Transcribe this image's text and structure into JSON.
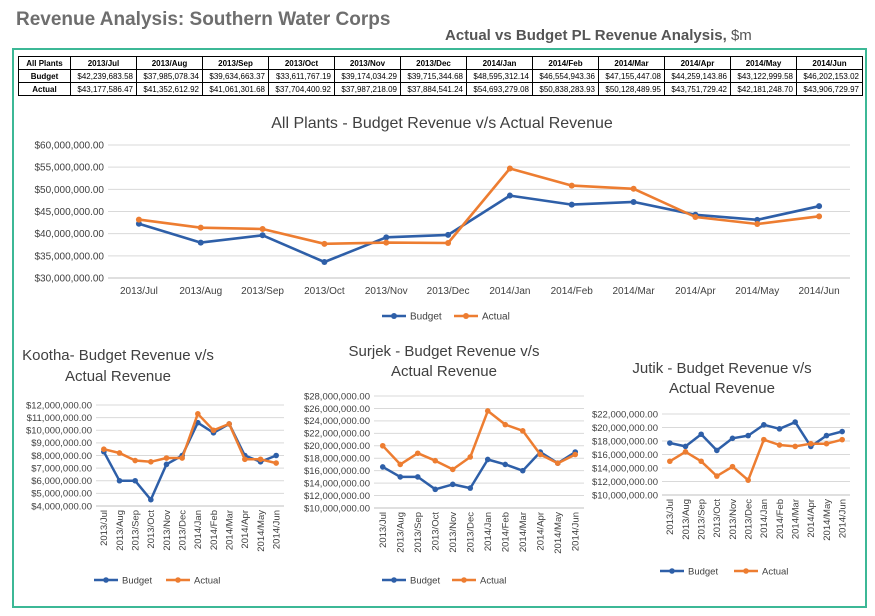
{
  "page": {
    "title": "Revenue Analysis: Southern Water Corps",
    "subtitle": "Actual vs Budget PL Revenue Analysis,",
    "subtitle_unit": "$m"
  },
  "summary_table": {
    "corner": "All Plants",
    "months": [
      "2013/Jul",
      "2013/Aug",
      "2013/Sep",
      "2013/Oct",
      "2013/Nov",
      "2013/Dec",
      "2014/Jan",
      "2014/Feb",
      "2014/Mar",
      "2014/Apr",
      "2014/May",
      "2014/Jun"
    ],
    "rows": [
      {
        "label": "Budget",
        "values": [
          "$42,239,683.58",
          "$37,985,078.34",
          "$39,634,663.37",
          "$33,611,767.19",
          "$39,174,034.29",
          "$39,715,344.68",
          "$48,595,312.14",
          "$46,554,943.36",
          "$47,155,447.08",
          "$44,259,143.86",
          "$43,122,999.58",
          "$46,202,153.02"
        ]
      },
      {
        "label": "Actual",
        "values": [
          "$43,177,586.47",
          "$41,352,612.92",
          "$41,061,301.68",
          "$37,704,400.92",
          "$37,987,218.09",
          "$37,884,541.24",
          "$54,693,279.08",
          "$50,838,283.93",
          "$50,128,489.95",
          "$43,751,729.42",
          "$42,181,248.70",
          "$43,906,729.97"
        ]
      }
    ]
  },
  "colors": {
    "budget": "#2e5fa8",
    "actual": "#ed7d31",
    "frame": "#3cb896",
    "grid": "#d9d9d9"
  },
  "chart_data": [
    {
      "type": "line",
      "title": "All Plants - Budget Revenue v/s Actual Revenue",
      "categories": [
        "2013/Jul",
        "2013/Aug",
        "2013/Sep",
        "2013/Oct",
        "2013/Nov",
        "2013/Dec",
        "2014/Jan",
        "2014/Feb",
        "2014/Mar",
        "2014/Apr",
        "2014/May",
        "2014/Jun"
      ],
      "series": [
        {
          "name": "Budget",
          "values": [
            42239683.58,
            37985078.34,
            39634663.37,
            33611767.19,
            39174034.29,
            39715344.68,
            48595312.14,
            46554943.36,
            47155447.08,
            44259143.86,
            43122999.58,
            46202153.02
          ]
        },
        {
          "name": "Actual",
          "values": [
            43177586.47,
            41352612.92,
            41061301.68,
            37704400.92,
            37987218.09,
            37884541.24,
            54693279.08,
            50838283.93,
            50128489.95,
            43751729.42,
            42181248.7,
            43906729.97
          ]
        }
      ],
      "ylim": [
        30000000,
        60000000
      ],
      "yticks": [
        30000000,
        35000000,
        40000000,
        45000000,
        50000000,
        55000000,
        60000000
      ],
      "grid": true,
      "legend": "bottom",
      "xlabel_rotated": false
    },
    {
      "type": "line",
      "title_lines": [
        "Kootha- Budget Revenue v/s",
        "Actual Revenue"
      ],
      "categories": [
        "2013/Jul",
        "2013/Aug",
        "2013/Sep",
        "2013/Oct",
        "2013/Nov",
        "2013/Dec",
        "2014/Jan",
        "2014/Feb",
        "2014/Mar",
        "2014/Apr",
        "2014/May",
        "2014/Jun"
      ],
      "series": [
        {
          "name": "Budget",
          "values": [
            8300000,
            6000000,
            6000000,
            4500000,
            7300000,
            8000000,
            10600000,
            9800000,
            10500000,
            8000000,
            7500000,
            8000000
          ]
        },
        {
          "name": "Actual",
          "values": [
            8500000,
            8200000,
            7600000,
            7500000,
            7800000,
            7800000,
            11300000,
            10000000,
            10500000,
            7700000,
            7700000,
            7400000
          ]
        }
      ],
      "ylim": [
        4000000,
        12000000
      ],
      "yticks": [
        4000000,
        5000000,
        6000000,
        7000000,
        8000000,
        9000000,
        10000000,
        11000000,
        12000000
      ],
      "grid": true,
      "legend": "bottom",
      "xlabel_rotated": true
    },
    {
      "type": "line",
      "title_lines": [
        "Surjek - Budget Revenue v/s",
        "Actual Revenue"
      ],
      "categories": [
        "2013/Jul",
        "2013/Aug",
        "2013/Sep",
        "2013/Oct",
        "2013/Nov",
        "2013/Dec",
        "2014/Jan",
        "2014/Feb",
        "2014/Mar",
        "2014/Apr",
        "2014/May",
        "2014/Jun"
      ],
      "series": [
        {
          "name": "Budget",
          "values": [
            16600000,
            15000000,
            15000000,
            13000000,
            13800000,
            13200000,
            17800000,
            17000000,
            16000000,
            19000000,
            17200000,
            19000000
          ]
        },
        {
          "name": "Actual",
          "values": [
            20000000,
            17000000,
            18800000,
            17600000,
            16200000,
            18200000,
            25600000,
            23400000,
            22400000,
            18600000,
            17200000,
            18600000
          ]
        }
      ],
      "ylim": [
        10000000,
        28000000
      ],
      "yticks": [
        10000000,
        12000000,
        14000000,
        16000000,
        18000000,
        20000000,
        22000000,
        24000000,
        26000000,
        28000000
      ],
      "grid": true,
      "legend": "bottom",
      "xlabel_rotated": true
    },
    {
      "type": "line",
      "title_lines": [
        "Jutik - Budget Revenue v/s",
        "Actual Revenue"
      ],
      "categories": [
        "2013/Jul",
        "2013/Aug",
        "2013/Sep",
        "2013/Oct",
        "2013/Nov",
        "2013/Dec",
        "2014/Jan",
        "2014/Feb",
        "2014/Mar",
        "2014/Apr",
        "2014/May",
        "2014/Jun"
      ],
      "series": [
        {
          "name": "Budget",
          "values": [
            17700000,
            17200000,
            19000000,
            16600000,
            18400000,
            18800000,
            20400000,
            19800000,
            20800000,
            17200000,
            18800000,
            19400000
          ]
        },
        {
          "name": "Actual",
          "values": [
            15000000,
            16400000,
            15000000,
            12800000,
            14200000,
            12200000,
            18200000,
            17400000,
            17200000,
            17600000,
            17600000,
            18200000
          ]
        }
      ],
      "ylim": [
        10000000,
        22000000
      ],
      "yticks": [
        10000000,
        12000000,
        14000000,
        16000000,
        18000000,
        20000000,
        22000000
      ],
      "grid": true,
      "legend": "bottom",
      "xlabel_rotated": true
    }
  ]
}
